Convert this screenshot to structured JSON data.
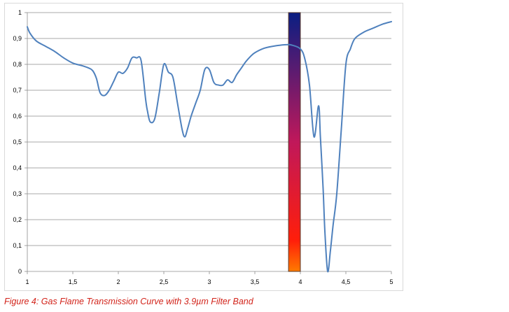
{
  "caption": "Figure 4: Gas Flame Transmission Curve with 3.9µm Filter Band",
  "colors": {
    "line": "#4f81bd",
    "grid": "#8c8c8c",
    "axis": "#8c8c8c",
    "filter_top": "#0a1e82",
    "filter_mid": "#c0185a",
    "filter_low": "#ff1e0a",
    "filter_bottom": "#ff7a00",
    "filter_border": "#5a3a2a"
  },
  "chart_data": {
    "type": "line",
    "title": "",
    "xlabel": "",
    "ylabel": "",
    "xlim": [
      1,
      5
    ],
    "ylim": [
      0,
      1
    ],
    "x_ticks": [
      1,
      1.5,
      2,
      2.5,
      3,
      3.5,
      4,
      4.5,
      5
    ],
    "x_tick_labels": [
      "1",
      "1,5",
      "2",
      "2,5",
      "3",
      "3,5",
      "4",
      "4,5",
      "5"
    ],
    "y_ticks": [
      0,
      0.1,
      0.2,
      0.3,
      0.4,
      0.5,
      0.6,
      0.7,
      0.8,
      0.9,
      1
    ],
    "y_tick_labels": [
      "0",
      "0,1",
      "0,2",
      "0,3",
      "0,4",
      "0,5",
      "0,6",
      "0,7",
      "0,8",
      "0,9",
      "1"
    ],
    "grid": true,
    "legend": "none",
    "series": [
      {
        "x": [
          1.0,
          1.03,
          1.1,
          1.2,
          1.3,
          1.4,
          1.5,
          1.6,
          1.68,
          1.72,
          1.76,
          1.8,
          1.85,
          1.9,
          1.95,
          2.0,
          2.05,
          2.1,
          2.15,
          2.2,
          2.25,
          2.3,
          2.32,
          2.35,
          2.4,
          2.45,
          2.5,
          2.55,
          2.6,
          2.65,
          2.7,
          2.73,
          2.76,
          2.8,
          2.85,
          2.9,
          2.95,
          3.0,
          3.05,
          3.1,
          3.15,
          3.2,
          3.25,
          3.3,
          3.35,
          3.4,
          3.45,
          3.5,
          3.6,
          3.7,
          3.8,
          3.85,
          3.9,
          4.0,
          4.05,
          4.1,
          4.15,
          4.2,
          4.22,
          4.25,
          4.27,
          4.3,
          4.33,
          4.36,
          4.4,
          4.45,
          4.5,
          4.55,
          4.6,
          4.7,
          4.8,
          4.9,
          5.0
        ],
        "y": [
          0.945,
          0.92,
          0.89,
          0.87,
          0.85,
          0.825,
          0.805,
          0.795,
          0.785,
          0.775,
          0.745,
          0.69,
          0.68,
          0.7,
          0.735,
          0.77,
          0.765,
          0.785,
          0.825,
          0.825,
          0.815,
          0.665,
          0.62,
          0.578,
          0.59,
          0.69,
          0.8,
          0.77,
          0.75,
          0.65,
          0.55,
          0.52,
          0.55,
          0.6,
          0.65,
          0.7,
          0.78,
          0.78,
          0.73,
          0.72,
          0.72,
          0.74,
          0.73,
          0.76,
          0.785,
          0.81,
          0.83,
          0.845,
          0.862,
          0.87,
          0.875,
          0.876,
          0.875,
          0.86,
          0.82,
          0.72,
          0.52,
          0.64,
          0.52,
          0.32,
          0.15,
          0.0,
          0.08,
          0.18,
          0.3,
          0.55,
          0.8,
          0.86,
          0.9,
          0.925,
          0.94,
          0.955,
          0.965
        ]
      }
    ],
    "filter_band": {
      "x_start": 3.87,
      "x_end": 4.0,
      "y_start": 0.0,
      "y_end": 1.0
    }
  }
}
